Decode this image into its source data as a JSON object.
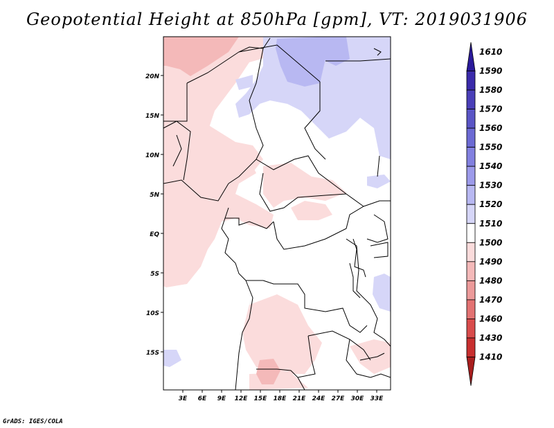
{
  "title": "Geopotential Height at 850hPa [gpm], VT: 2019031906",
  "credit": "GrADS: IGES/COLA",
  "map": {
    "lat_labels": [
      "20N",
      "15N",
      "10N",
      "5N",
      "EQ",
      "5S",
      "10S",
      "15S"
    ],
    "lon_labels": [
      "3E",
      "6E",
      "9E",
      "12E",
      "15E",
      "18E",
      "21E",
      "24E",
      "27E",
      "30E",
      "33E"
    ]
  },
  "colorbar": {
    "levels": [
      "1610",
      "1590",
      "1580",
      "1570",
      "1560",
      "1550",
      "1540",
      "1530",
      "1520",
      "1510",
      "1500",
      "1490",
      "1480",
      "1470",
      "1460",
      "1430",
      "1410"
    ],
    "colors": [
      "#2a1a9a",
      "#3a2aaa",
      "#4a3fb8",
      "#5a55c6",
      "#6c6ad4",
      "#8280e0",
      "#9c9aea",
      "#b8b8f2",
      "#d6d6f8",
      "#ffffff",
      "#fbdcdc",
      "#f4b9b9",
      "#ec9a9a",
      "#e37272",
      "#d94c4c",
      "#c82f2f",
      "#a81e1e"
    ]
  }
}
